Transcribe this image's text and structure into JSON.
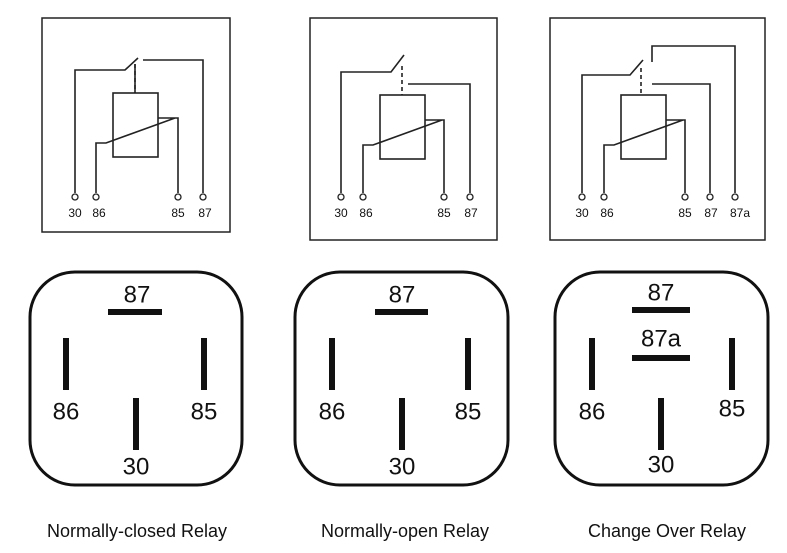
{
  "relays": [
    {
      "caption": "Normally-closed Relay",
      "schematic": [
        "30",
        "86",
        "85",
        "87"
      ],
      "socket": [
        "87",
        "86",
        "85",
        "30"
      ]
    },
    {
      "caption": "Normally-open Relay",
      "schematic": [
        "30",
        "86",
        "85",
        "87"
      ],
      "socket": [
        "87",
        "86",
        "85",
        "30"
      ]
    },
    {
      "caption": "Change Over Relay",
      "schematic": [
        "30",
        "86",
        "85",
        "87",
        "87a"
      ],
      "socket": [
        "87",
        "87a",
        "86",
        "85",
        "30"
      ]
    }
  ]
}
